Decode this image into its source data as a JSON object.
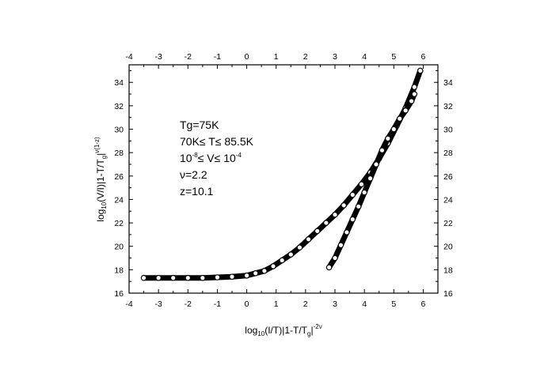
{
  "chart_data": {
    "type": "scatter",
    "title": "",
    "xlabel": {
      "prefix": "log",
      "sub": "10",
      "main": "(I/T)|1-T/T",
      "sub2": "g",
      "tail": "|",
      "sup": "-2ν"
    },
    "ylabel": {
      "prefix": "log",
      "sub": "10",
      "main": "(V/I)|1-T/T",
      "sub2": "g",
      "tail": "|",
      "sup": "ν(1-z)"
    },
    "xlim": [
      -4,
      6.5
    ],
    "ylim": [
      16,
      35.5
    ],
    "x_ticks": [
      "-4",
      "-3",
      "-2",
      "-1",
      "0",
      "1",
      "2",
      "3",
      "4",
      "5",
      "6"
    ],
    "y_ticks": [
      "16",
      "18",
      "20",
      "22",
      "24",
      "26",
      "28",
      "30",
      "32",
      "34"
    ],
    "grid": false,
    "mirror_axes": true,
    "annotations": [
      {
        "text": "Tg=75K"
      },
      {
        "text": "70K≤  T≤  85.5K"
      },
      {
        "pre": "10",
        "sup1": "-8",
        "mid": "≤  V≤  10",
        "sup2": "-4"
      },
      {
        "text": "ν=2.2"
      },
      {
        "text": "z=10.1"
      }
    ],
    "series": [
      {
        "x": [
          -3.5,
          -3.0,
          -2.5,
          -2.0,
          -1.5,
          -1.0,
          -0.5,
          0.0,
          0.3,
          0.6,
          0.9,
          1.2,
          1.5,
          1.8,
          2.1,
          2.4,
          2.7,
          3.0,
          3.3,
          3.6,
          3.9,
          4.2,
          4.5,
          4.8,
          5.1,
          5.4,
          5.7,
          5.9
        ],
        "y": [
          17.3,
          17.3,
          17.3,
          17.3,
          17.3,
          17.35,
          17.4,
          17.5,
          17.7,
          17.9,
          18.3,
          18.8,
          19.3,
          19.9,
          20.6,
          21.3,
          22.0,
          22.7,
          23.5,
          24.4,
          25.3,
          26.3,
          27.5,
          28.8,
          30.3,
          31.8,
          33.6,
          35.0
        ],
        "color": "#000000"
      },
      {
        "x": [
          2.8,
          3.0,
          3.2,
          3.4,
          3.6,
          3.8,
          4.0,
          4.2,
          4.4,
          4.6,
          4.8,
          5.0,
          5.2,
          5.4,
          5.6,
          5.7
        ],
        "y": [
          18.2,
          19.0,
          20.1,
          21.2,
          22.3,
          23.4,
          24.6,
          25.8,
          27.0,
          28.2,
          29.2,
          30.0,
          30.9,
          31.6,
          32.4,
          33.0
        ],
        "color": "#000000"
      }
    ]
  }
}
